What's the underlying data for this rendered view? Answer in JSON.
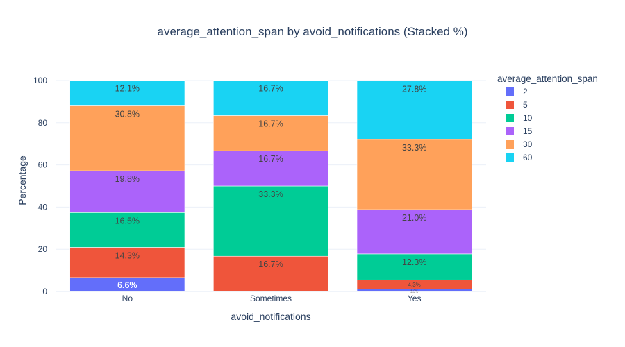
{
  "chart_data": {
    "type": "bar",
    "stacked": true,
    "title": "average_attention_span by avoid_notifications (Stacked %)",
    "xlabel": "avoid_notifications",
    "ylabel": "Percentage",
    "ylim": [
      0,
      100
    ],
    "yticks": [
      0,
      20,
      40,
      60,
      80,
      100
    ],
    "grid": true,
    "legend_title": "average_attention_span",
    "legend_position": "right",
    "categories": [
      "No",
      "Sometimes",
      "Yes"
    ],
    "series": [
      {
        "name": "2",
        "color": "#636efa",
        "values": [
          6.6,
          0,
          1.2
        ],
        "labels": [
          "6.6%",
          "",
          "1.2%"
        ]
      },
      {
        "name": "5",
        "color": "#ef553b",
        "values": [
          14.3,
          16.7,
          4.3
        ],
        "labels": [
          "14.3%",
          "16.7%",
          "4.3%"
        ]
      },
      {
        "name": "10",
        "color": "#00cc96",
        "values": [
          16.5,
          33.3,
          12.3
        ],
        "labels": [
          "16.5%",
          "33.3%",
          "12.3%"
        ]
      },
      {
        "name": "15",
        "color": "#ab63fa",
        "values": [
          19.8,
          16.7,
          21.0
        ],
        "labels": [
          "19.8%",
          "16.7%",
          "21.0%"
        ]
      },
      {
        "name": "30",
        "color": "#ffa15a",
        "values": [
          30.8,
          16.7,
          33.3
        ],
        "labels": [
          "30.8%",
          "16.7%",
          "33.3%"
        ]
      },
      {
        "name": "60",
        "color": "#19d3f3",
        "values": [
          12.1,
          16.7,
          27.8
        ],
        "labels": [
          "12.1%",
          "16.7%",
          "27.8%"
        ]
      }
    ]
  }
}
